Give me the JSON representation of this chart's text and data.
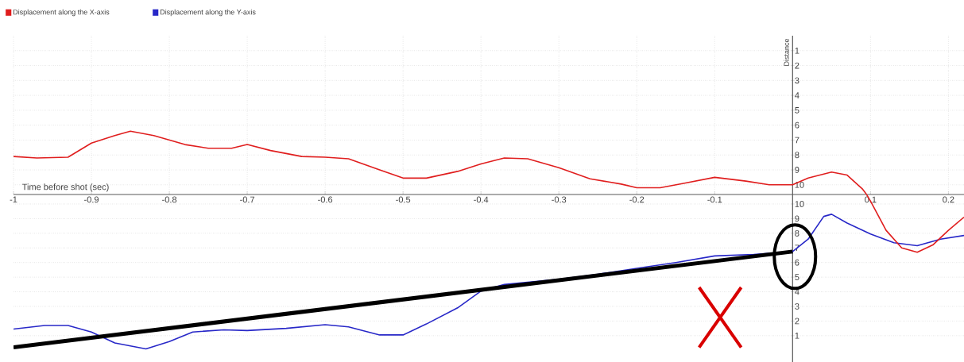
{
  "chart_data": [
    {
      "type": "line",
      "xlabel": "Time before shot (sec)",
      "ylabel": "Distance",
      "xlim": [
        -1,
        0.22
      ],
      "ylim": [
        10.65,
        0
      ],
      "xticks": [
        -1,
        -0.9,
        -0.8,
        -0.7,
        -0.6,
        -0.5,
        -0.4,
        -0.3,
        -0.2,
        -0.1,
        0.1,
        0.2
      ],
      "yticks": [
        1,
        2,
        3,
        4,
        5,
        6,
        7,
        8,
        9,
        10
      ],
      "grid": true,
      "legend": "top left",
      "series": [
        {
          "name": "Displacement along the X-axis",
          "color": "#e01e1e",
          "x": [
            -1,
            -0.97,
            -0.93,
            -0.9,
            -0.87,
            -0.85,
            -0.82,
            -0.78,
            -0.75,
            -0.72,
            -0.7,
            -0.67,
            -0.63,
            -0.6,
            -0.57,
            -0.53,
            -0.5,
            -0.47,
            -0.43,
            -0.4,
            -0.37,
            -0.34,
            -0.3,
            -0.26,
            -0.22,
            -0.2,
            -0.17,
            -0.14,
            -0.1,
            -0.06,
            -0.03,
            0,
            0.02,
            0.05,
            0.07,
            0.09,
            0.095
          ],
          "values": [
            8.1,
            8.2,
            8.15,
            7.2,
            6.7,
            6.4,
            6.7,
            7.3,
            7.55,
            7.55,
            7.3,
            7.7,
            8.1,
            8.15,
            8.25,
            9.0,
            9.55,
            9.55,
            9.1,
            8.6,
            8.2,
            8.25,
            8.85,
            9.6,
            9.95,
            10.2,
            10.2,
            9.9,
            9.5,
            9.75,
            10.0,
            10.0,
            9.55,
            9.15,
            9.35,
            10.3,
            10.65
          ]
        }
      ]
    },
    {
      "type": "line",
      "xlim": [
        -1,
        0.22
      ],
      "ylim": [
        -0.8,
        10.65
      ],
      "yticks": [
        1,
        2,
        3,
        4,
        5,
        6,
        7,
        8,
        9,
        10
      ],
      "tick_labels": "y",
      "grid": true,
      "legend": "top left",
      "series": [
        {
          "name": "Displacement along the Y-axis",
          "color": "#2828c8",
          "x": [
            -1,
            -0.96,
            -0.93,
            -0.9,
            -0.87,
            -0.83,
            -0.8,
            -0.77,
            -0.73,
            -0.7,
            -0.65,
            -0.6,
            -0.57,
            -0.53,
            -0.5,
            -0.47,
            -0.43,
            -0.4,
            -0.37,
            -0.3,
            -0.25,
            -0.2,
            -0.15,
            -0.1,
            -0.05,
            0,
            0.02,
            0.04,
            0.05,
            0.07,
            0.1,
            0.13,
            0.16,
            0.19,
            0.22
          ],
          "values": [
            1.45,
            1.7,
            1.7,
            1.25,
            0.5,
            0.1,
            0.6,
            1.25,
            1.4,
            1.35,
            1.5,
            1.75,
            1.6,
            1.05,
            1.05,
            1.8,
            2.9,
            4.05,
            4.5,
            4.85,
            5.2,
            5.6,
            6.0,
            6.45,
            6.55,
            6.75,
            7.6,
            9.15,
            9.3,
            8.7,
            7.95,
            7.35,
            7.15,
            7.6,
            7.85
          ]
        },
        {
          "color": "#e01e1e",
          "x": [
            0.095,
            0.1,
            0.12,
            0.14,
            0.16,
            0.18,
            0.2,
            0.22
          ],
          "values": [
            10.65,
            10.2,
            8.2,
            7.0,
            6.7,
            7.2,
            8.2,
            9.1
          ]
        },
        {
          "type": "line",
          "color": "#000000",
          "x": [
            -1,
            0
          ],
          "values": [
            0.2,
            6.75
          ]
        }
      ]
    }
  ]
}
